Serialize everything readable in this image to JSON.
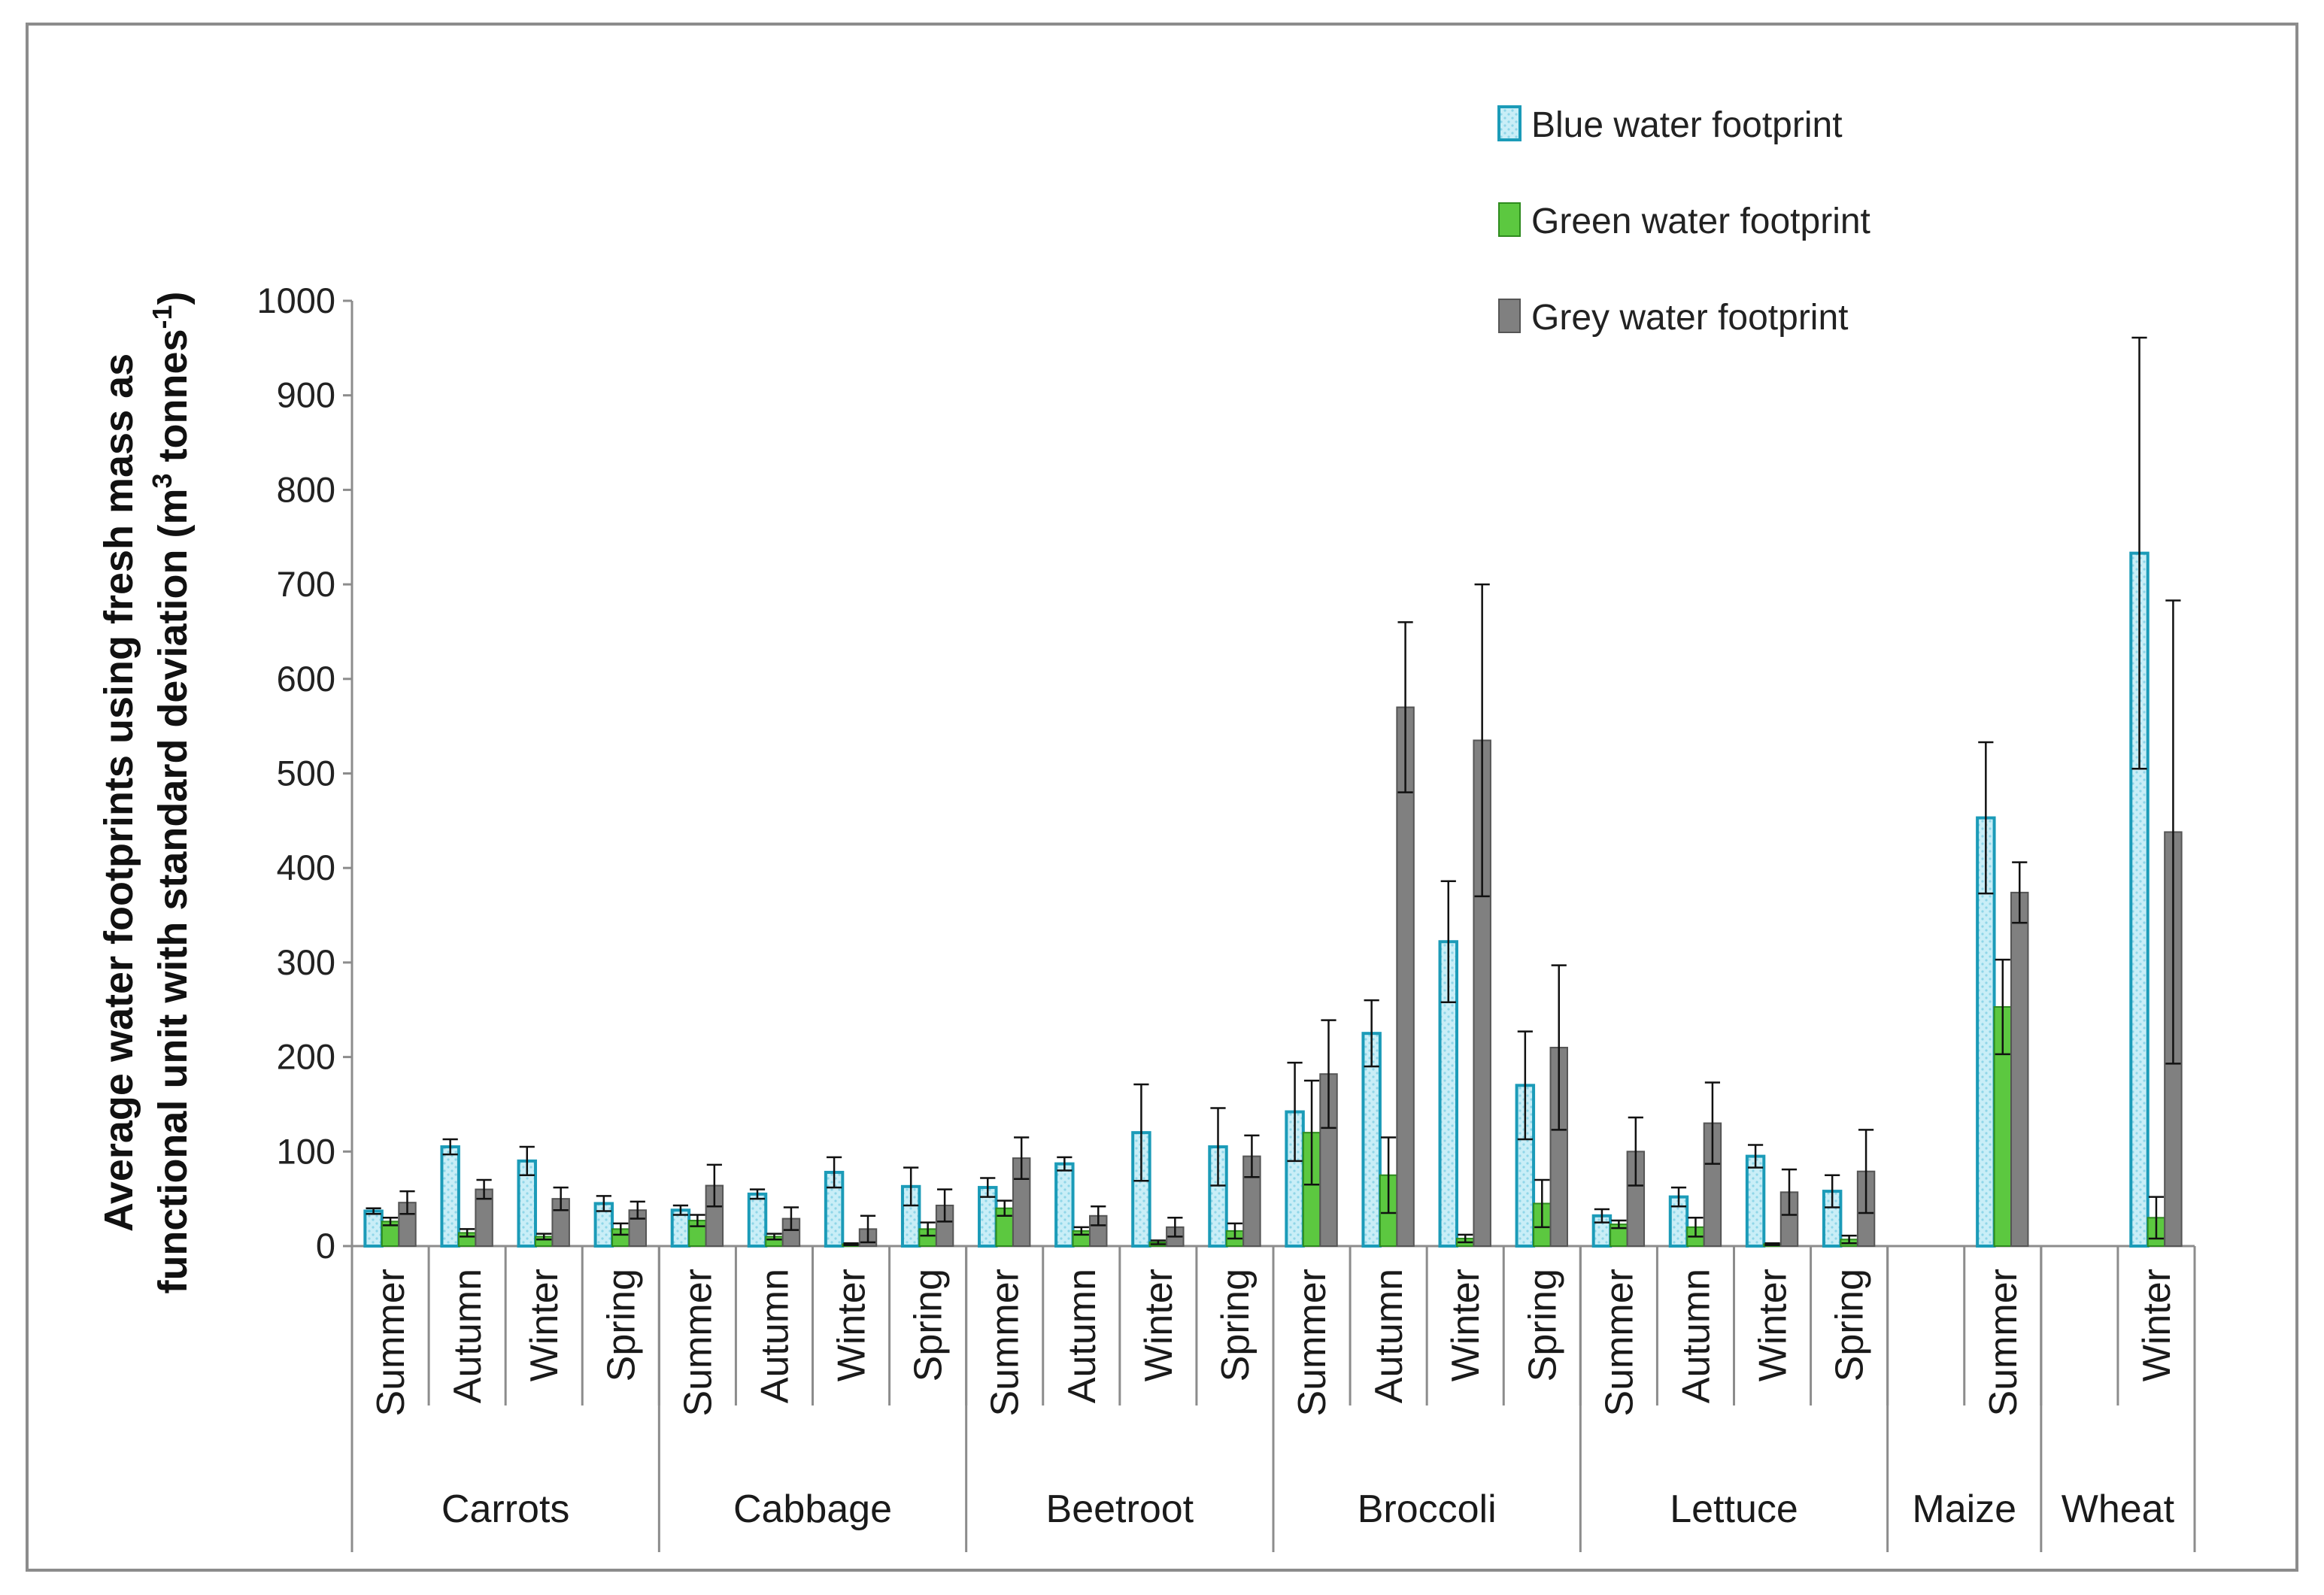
{
  "chart_data": {
    "type": "bar",
    "title": "",
    "ylabel": "Average water footprints using fresh mass as functional unit with standard deviation (m3 tonnes-1)",
    "ylabel_lines": [
      "Average water footprints using fresh mass as",
      "functional unit with standard deviation (m",
      "3",
      " tonnes",
      "-1",
      ")"
    ],
    "ylim": [
      0,
      1000
    ],
    "yticks": [
      "0",
      "100",
      "200",
      "300",
      "400",
      "500",
      "600",
      "700",
      "800",
      "900",
      "1000"
    ],
    "legend_position": "top-right",
    "groups": [
      {
        "name": "Carrots",
        "seasons": [
          "Summer",
          "Autumn",
          "Winter",
          "Spring"
        ]
      },
      {
        "name": "Cabbage",
        "seasons": [
          "Summer",
          "Autumn",
          "Winter",
          "Spring"
        ]
      },
      {
        "name": "Beetroot",
        "seasons": [
          "Summer",
          "Autumn",
          "Winter",
          "Spring"
        ]
      },
      {
        "name": "Broccoli",
        "seasons": [
          "Summer",
          "Autumn",
          "Winter",
          "Spring"
        ]
      },
      {
        "name": "Lettuce",
        "seasons": [
          "Summer",
          "Autumn",
          "Winter",
          "Spring"
        ]
      },
      {
        "name": "Maize",
        "seasons": [
          "",
          "Summer"
        ]
      },
      {
        "name": "Wheat",
        "seasons": [
          "",
          "Winter"
        ]
      }
    ],
    "series": [
      {
        "name": "Blue water footprint",
        "color": "#c9eef7",
        "edge": "#1b9bb8",
        "values": [
          37,
          105,
          90,
          45,
          38,
          55,
          78,
          63,
          62,
          87,
          120,
          105,
          142,
          225,
          322,
          170,
          32,
          52,
          95,
          58,
          null,
          453,
          null,
          733
        ],
        "errors": [
          3,
          8,
          15,
          8,
          5,
          5,
          16,
          20,
          10,
          7,
          51,
          41,
          52,
          35,
          64,
          57,
          7,
          10,
          12,
          17,
          null,
          80,
          null,
          228
        ]
      },
      {
        "name": "Green water footprint",
        "color": "#5cc840",
        "edge": "#2e8b1e",
        "values": [
          26,
          14,
          10,
          18,
          27,
          10,
          2,
          18,
          40,
          16,
          4,
          16,
          120,
          75,
          8,
          45,
          23,
          20,
          2,
          7,
          null,
          253,
          null,
          30
        ],
        "errors": [
          4,
          4,
          3,
          6,
          6,
          3,
          1,
          7,
          8,
          4,
          2,
          8,
          55,
          40,
          4,
          25,
          4,
          10,
          1,
          4,
          null,
          50,
          null,
          22
        ]
      },
      {
        "name": "Grey water footprint",
        "color": "#808080",
        "edge": "#555555",
        "values": [
          46,
          60,
          50,
          38,
          64,
          29,
          18,
          43,
          93,
          32,
          20,
          95,
          182,
          570,
          535,
          210,
          100,
          130,
          57,
          79,
          null,
          374,
          null,
          438
        ],
        "errors": [
          12,
          10,
          12,
          9,
          22,
          12,
          14,
          17,
          22,
          10,
          10,
          22,
          57,
          90,
          165,
          87,
          36,
          43,
          24,
          44,
          null,
          32,
          null,
          245
        ]
      }
    ]
  }
}
